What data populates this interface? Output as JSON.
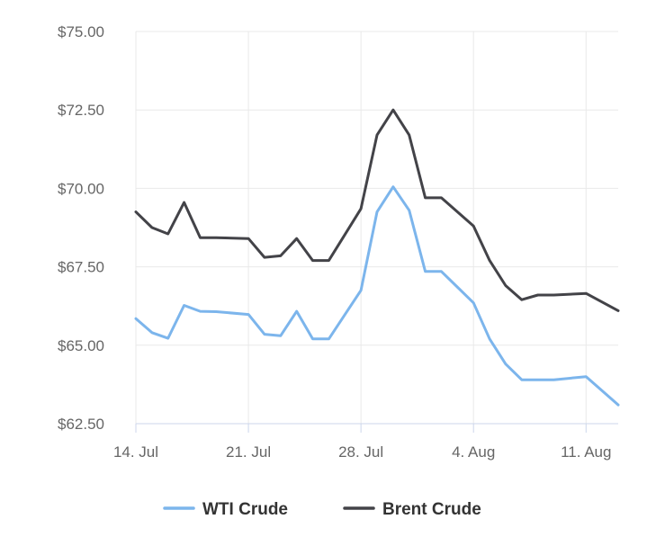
{
  "chart_data": {
    "type": "line",
    "title": "",
    "xlabel": "",
    "ylabel": "",
    "ylim": [
      62.5,
      75.0
    ],
    "yticks": [
      "$62.50",
      "$65.00",
      "$67.50",
      "$70.00",
      "$72.50",
      "$75.00"
    ],
    "ytick_values": [
      62.5,
      65.0,
      67.5,
      70.0,
      72.5,
      75.0
    ],
    "xticks": [
      "14. Jul",
      "21. Jul",
      "28. Jul",
      "4. Aug",
      "11. Aug"
    ],
    "xtick_days": [
      0,
      7,
      14,
      21,
      28
    ],
    "x_dates": [
      "Jul 14",
      "Jul 15",
      "Jul 16",
      "Jul 17",
      "Jul 18",
      "Jul 19",
      "Jul 21",
      "Jul 22",
      "Jul 23",
      "Jul 24",
      "Jul 25",
      "Jul 26",
      "Jul 28",
      "Jul 29",
      "Jul 30",
      "Jul 31",
      "Aug 1",
      "Aug 2",
      "Aug 4",
      "Aug 5",
      "Aug 6",
      "Aug 7",
      "Aug 8",
      "Aug 9",
      "Aug 11",
      "Aug 13"
    ],
    "x_days": [
      0,
      1,
      2,
      3,
      4,
      5,
      7,
      8,
      9,
      10,
      11,
      12,
      14,
      15,
      16,
      17,
      18,
      19,
      21,
      22,
      23,
      24,
      25,
      26,
      28,
      30
    ],
    "grid": true,
    "legend_position": "bottom",
    "series": [
      {
        "name": "WTI Crude",
        "color": "#7cb5ec",
        "values": [
          65.85,
          65.4,
          65.22,
          66.27,
          66.08,
          66.07,
          65.98,
          65.35,
          65.3,
          66.08,
          65.2,
          65.2,
          66.75,
          69.25,
          70.05,
          69.3,
          67.35,
          67.35,
          66.35,
          65.2,
          64.4,
          63.9,
          63.9,
          63.9,
          64.0,
          63.1
        ]
      },
      {
        "name": "Brent Crude",
        "color": "#434348",
        "values": [
          69.25,
          68.75,
          68.55,
          69.55,
          68.43,
          68.43,
          68.4,
          67.8,
          67.85,
          68.4,
          67.7,
          67.7,
          69.35,
          71.7,
          72.5,
          71.7,
          69.7,
          69.7,
          68.8,
          67.7,
          66.9,
          66.45,
          66.6,
          66.6,
          66.65,
          66.1
        ]
      }
    ]
  }
}
